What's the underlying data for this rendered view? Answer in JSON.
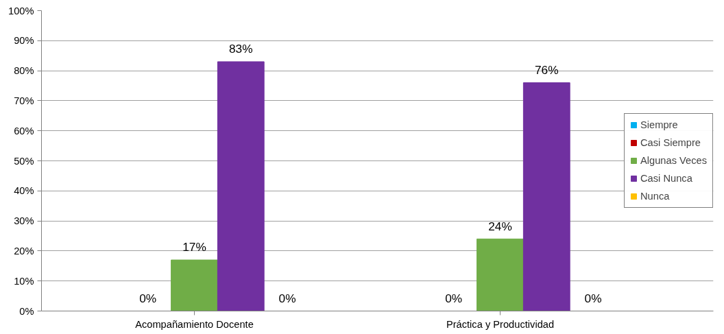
{
  "chart_data": {
    "type": "bar",
    "categories": [
      "Acompañamiento Docente",
      "Práctica y Productividad"
    ],
    "series": [
      {
        "name": "Siempre",
        "color": "#00b0f0",
        "values": [
          null,
          null
        ],
        "value_labels": [
          null,
          null
        ]
      },
      {
        "name": "Casi Siempre",
        "color": "#c00000",
        "values": [
          0,
          0
        ],
        "value_labels": [
          "0%",
          "0%"
        ]
      },
      {
        "name": "Algunas Veces",
        "color": "#70ad47",
        "values": [
          17,
          24
        ],
        "value_labels": [
          "17%",
          "24%"
        ]
      },
      {
        "name": "Casi Nunca",
        "color": "#7030a0",
        "values": [
          83,
          76
        ],
        "value_labels": [
          "83%",
          "76%"
        ]
      },
      {
        "name": "Nunca",
        "color": "#ffc000",
        "values": [
          0,
          0
        ],
        "value_labels": [
          "0%",
          "0%"
        ]
      }
    ],
    "ylim": [
      0,
      100
    ],
    "yticks": [
      {
        "value": 0,
        "label": "0%"
      },
      {
        "value": 10,
        "label": "10%"
      },
      {
        "value": 20,
        "label": "20%"
      },
      {
        "value": 30,
        "label": "30%"
      },
      {
        "value": 40,
        "label": "40%"
      },
      {
        "value": 50,
        "label": "50%"
      },
      {
        "value": 60,
        "label": "60%"
      },
      {
        "value": 70,
        "label": "70%"
      },
      {
        "value": 80,
        "label": "80%"
      },
      {
        "value": 90,
        "label": "90%"
      },
      {
        "value": 100,
        "label": "100%"
      }
    ],
    "grid": "y",
    "legend": "right"
  }
}
